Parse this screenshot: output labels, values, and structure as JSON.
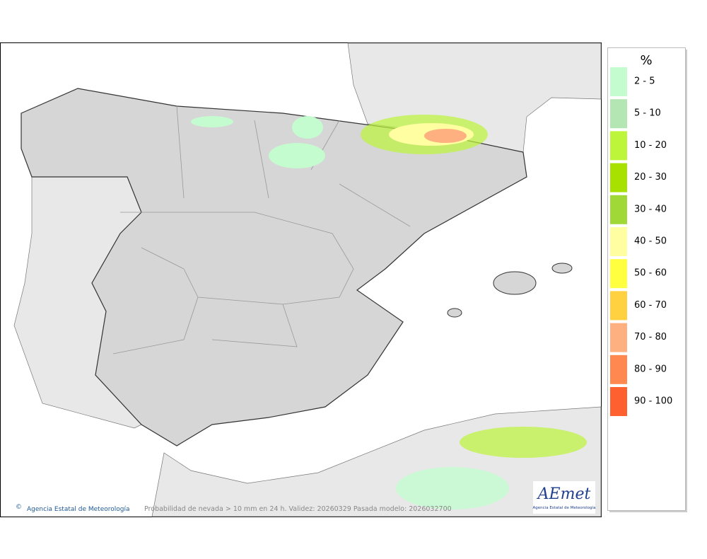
{
  "legend": {
    "title": "%",
    "items": [
      {
        "label": "2 - 5",
        "color": "#c4fcd0"
      },
      {
        "label": "5 - 10",
        "color": "#b4e6b4"
      },
      {
        "label": "10 - 20",
        "color": "#bcf53a"
      },
      {
        "label": "20 - 30",
        "color": "#a8e000"
      },
      {
        "label": "30 - 40",
        "color": "#a0d838"
      },
      {
        "label": "40 - 50",
        "color": "#fffea0"
      },
      {
        "label": "50 - 60",
        "color": "#ffff40"
      },
      {
        "label": "60 - 70",
        "color": "#ffd040"
      },
      {
        "label": "70 - 80",
        "color": "#ffb080"
      },
      {
        "label": "80 - 90",
        "color": "#ff8850"
      },
      {
        "label": "90 - 100",
        "color": "#ff6030"
      }
    ]
  },
  "footer": {
    "agency": "Agencia Estatal de Meteorología",
    "caption": "Probabilidad de nevada > 10 mm en 24 h. Validez: 20260329 Pasada modelo: 2026032700"
  },
  "logo": {
    "name": "AEmet",
    "subtitle": "Agencia Estatal de Meteorología"
  }
}
